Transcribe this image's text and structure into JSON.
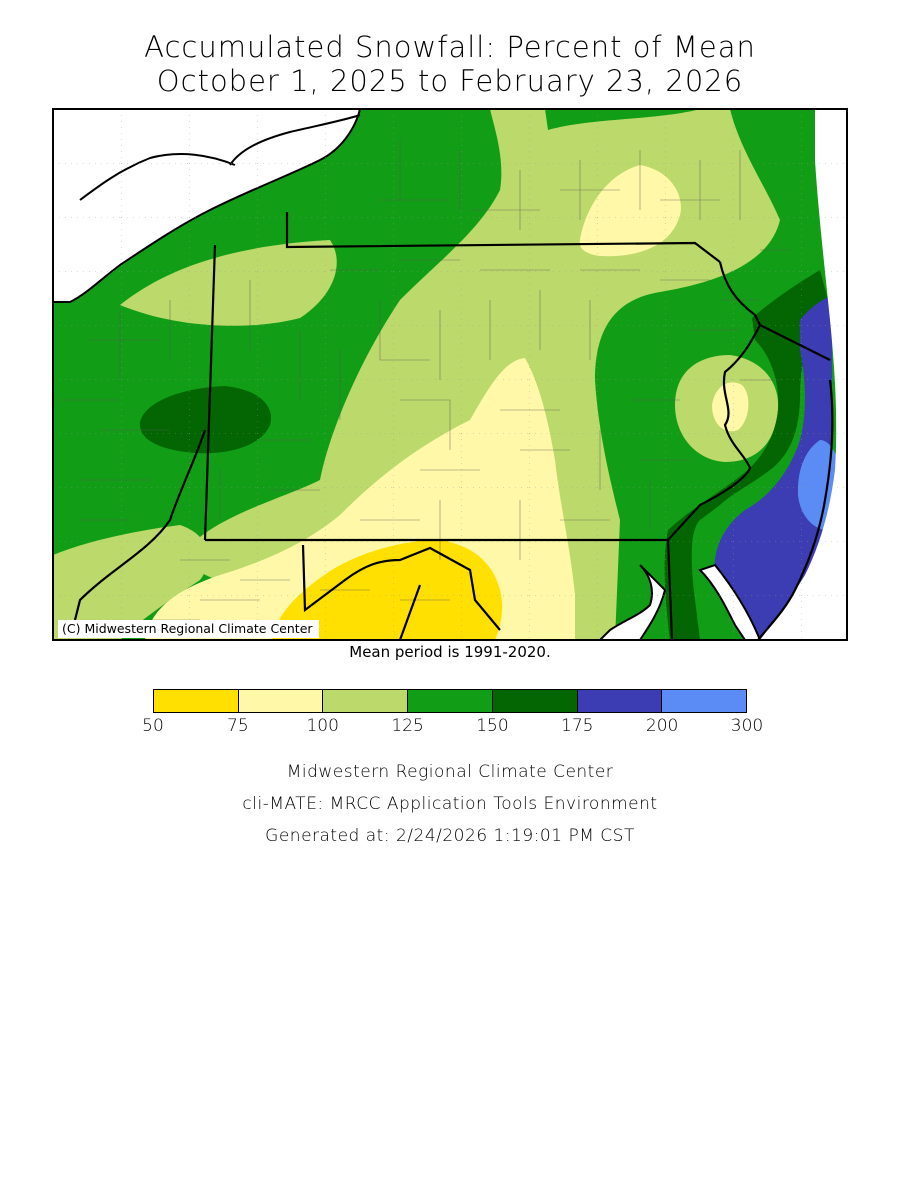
{
  "title": {
    "line1": "Accumulated Snowfall: Percent of Mean",
    "line2": "October 1, 2025 to February 23, 2026"
  },
  "map": {
    "copyright": "(C) Midwestern Regional Climate Center",
    "mean_note": "Mean period is 1991-2020."
  },
  "legend": {
    "ticks": [
      "50",
      "75",
      "100",
      "125",
      "150",
      "175",
      "200",
      "300"
    ],
    "colors": [
      "#ffe000",
      "#fff8a8",
      "#bcd96b",
      "#119e16",
      "#036602",
      "#3c3cb3",
      "#5b8cf5"
    ]
  },
  "palette": {
    "water": "#ffffff",
    "border": "#000000"
  },
  "footer": {
    "line1": "Midwestern Regional Climate Center",
    "line2": "cli-MATE: MRCC Application Tools Environment",
    "line3": "Generated at: 2/24/2026 1:19:01 PM CST"
  }
}
